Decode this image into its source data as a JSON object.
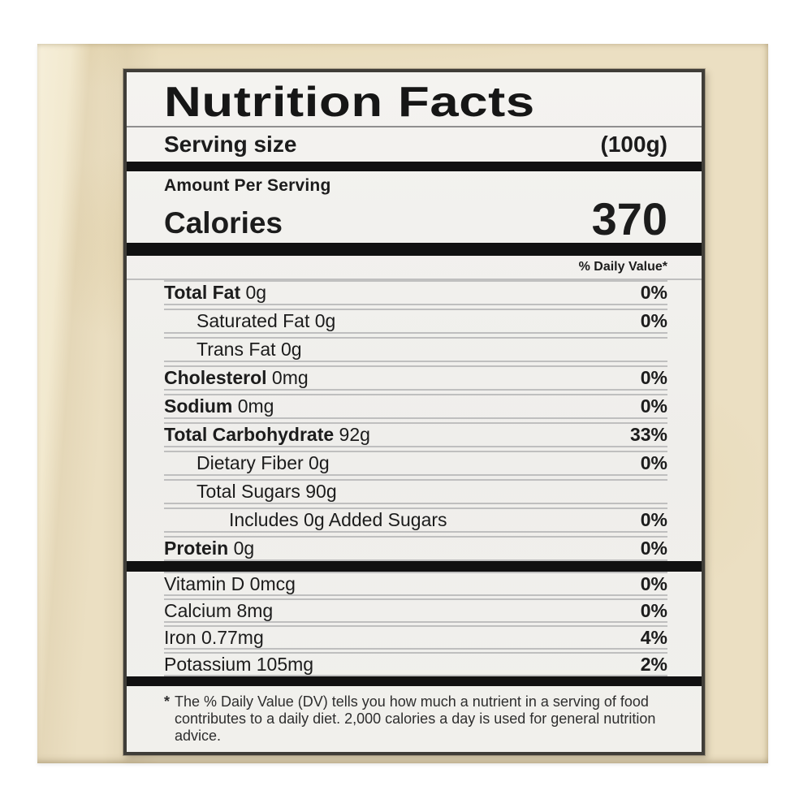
{
  "packaging": {
    "color": "#ebdfc2"
  },
  "label": {
    "title": "Nutrition Facts",
    "serving_size_label": "Serving size",
    "serving_size_value": "(100g)",
    "amount_per_serving": "Amount Per Serving",
    "calories_label": "Calories",
    "calories_value": "370",
    "daily_value_header": "% Daily Value*",
    "rows_main": [
      {
        "bold": "Total Fat",
        "rest": " 0g",
        "dv": "0%",
        "indent": 0
      },
      {
        "bold": "",
        "rest": "Saturated Fat 0g",
        "dv": "0%",
        "indent": 1
      },
      {
        "bold": "",
        "rest": "Trans Fat 0g",
        "dv": "",
        "indent": 1
      },
      {
        "bold": "Cholesterol",
        "rest": " 0mg",
        "dv": "0%",
        "indent": 0
      },
      {
        "bold": "Sodium",
        "rest": " 0mg",
        "dv": "0%",
        "indent": 0
      },
      {
        "bold": "Total Carbohydrate",
        "rest": " 92g",
        "dv": "33%",
        "indent": 0
      },
      {
        "bold": "",
        "rest": "Dietary Fiber 0g",
        "dv": "0%",
        "indent": 1
      },
      {
        "bold": "",
        "rest": "Total Sugars 90g",
        "dv": "",
        "indent": 1
      },
      {
        "bold": "",
        "rest": "Includes 0g Added Sugars",
        "dv": "0%",
        "indent": 2
      },
      {
        "bold": "Protein",
        "rest": " 0g",
        "dv": "0%",
        "indent": 0
      }
    ],
    "rows_vitamins": [
      {
        "bold": "",
        "rest": "Vitamin D 0mcg",
        "dv": "0%",
        "indent": 0
      },
      {
        "bold": "",
        "rest": "Calcium 8mg",
        "dv": "0%",
        "indent": 0
      },
      {
        "bold": "",
        "rest": "Iron 0.77mg",
        "dv": "4%",
        "indent": 0
      },
      {
        "bold": "",
        "rest": "Potassium 105mg",
        "dv": "2%",
        "indent": 0
      }
    ],
    "footnote_asterisk": "*",
    "footnote": "The % Daily Value (DV) tells you how much a nutrient in a serving of food contributes to a daily diet. 2,000 calories a day is used for general nutrition advice."
  },
  "colors": {
    "packaging_cream": "#ebdfc2",
    "label_background": "#f2f1ee",
    "bar_black": "#111111",
    "separator_gray": "#bfbfbf",
    "border_gray": "#3f3d38",
    "text": "#1c1c1c"
  }
}
